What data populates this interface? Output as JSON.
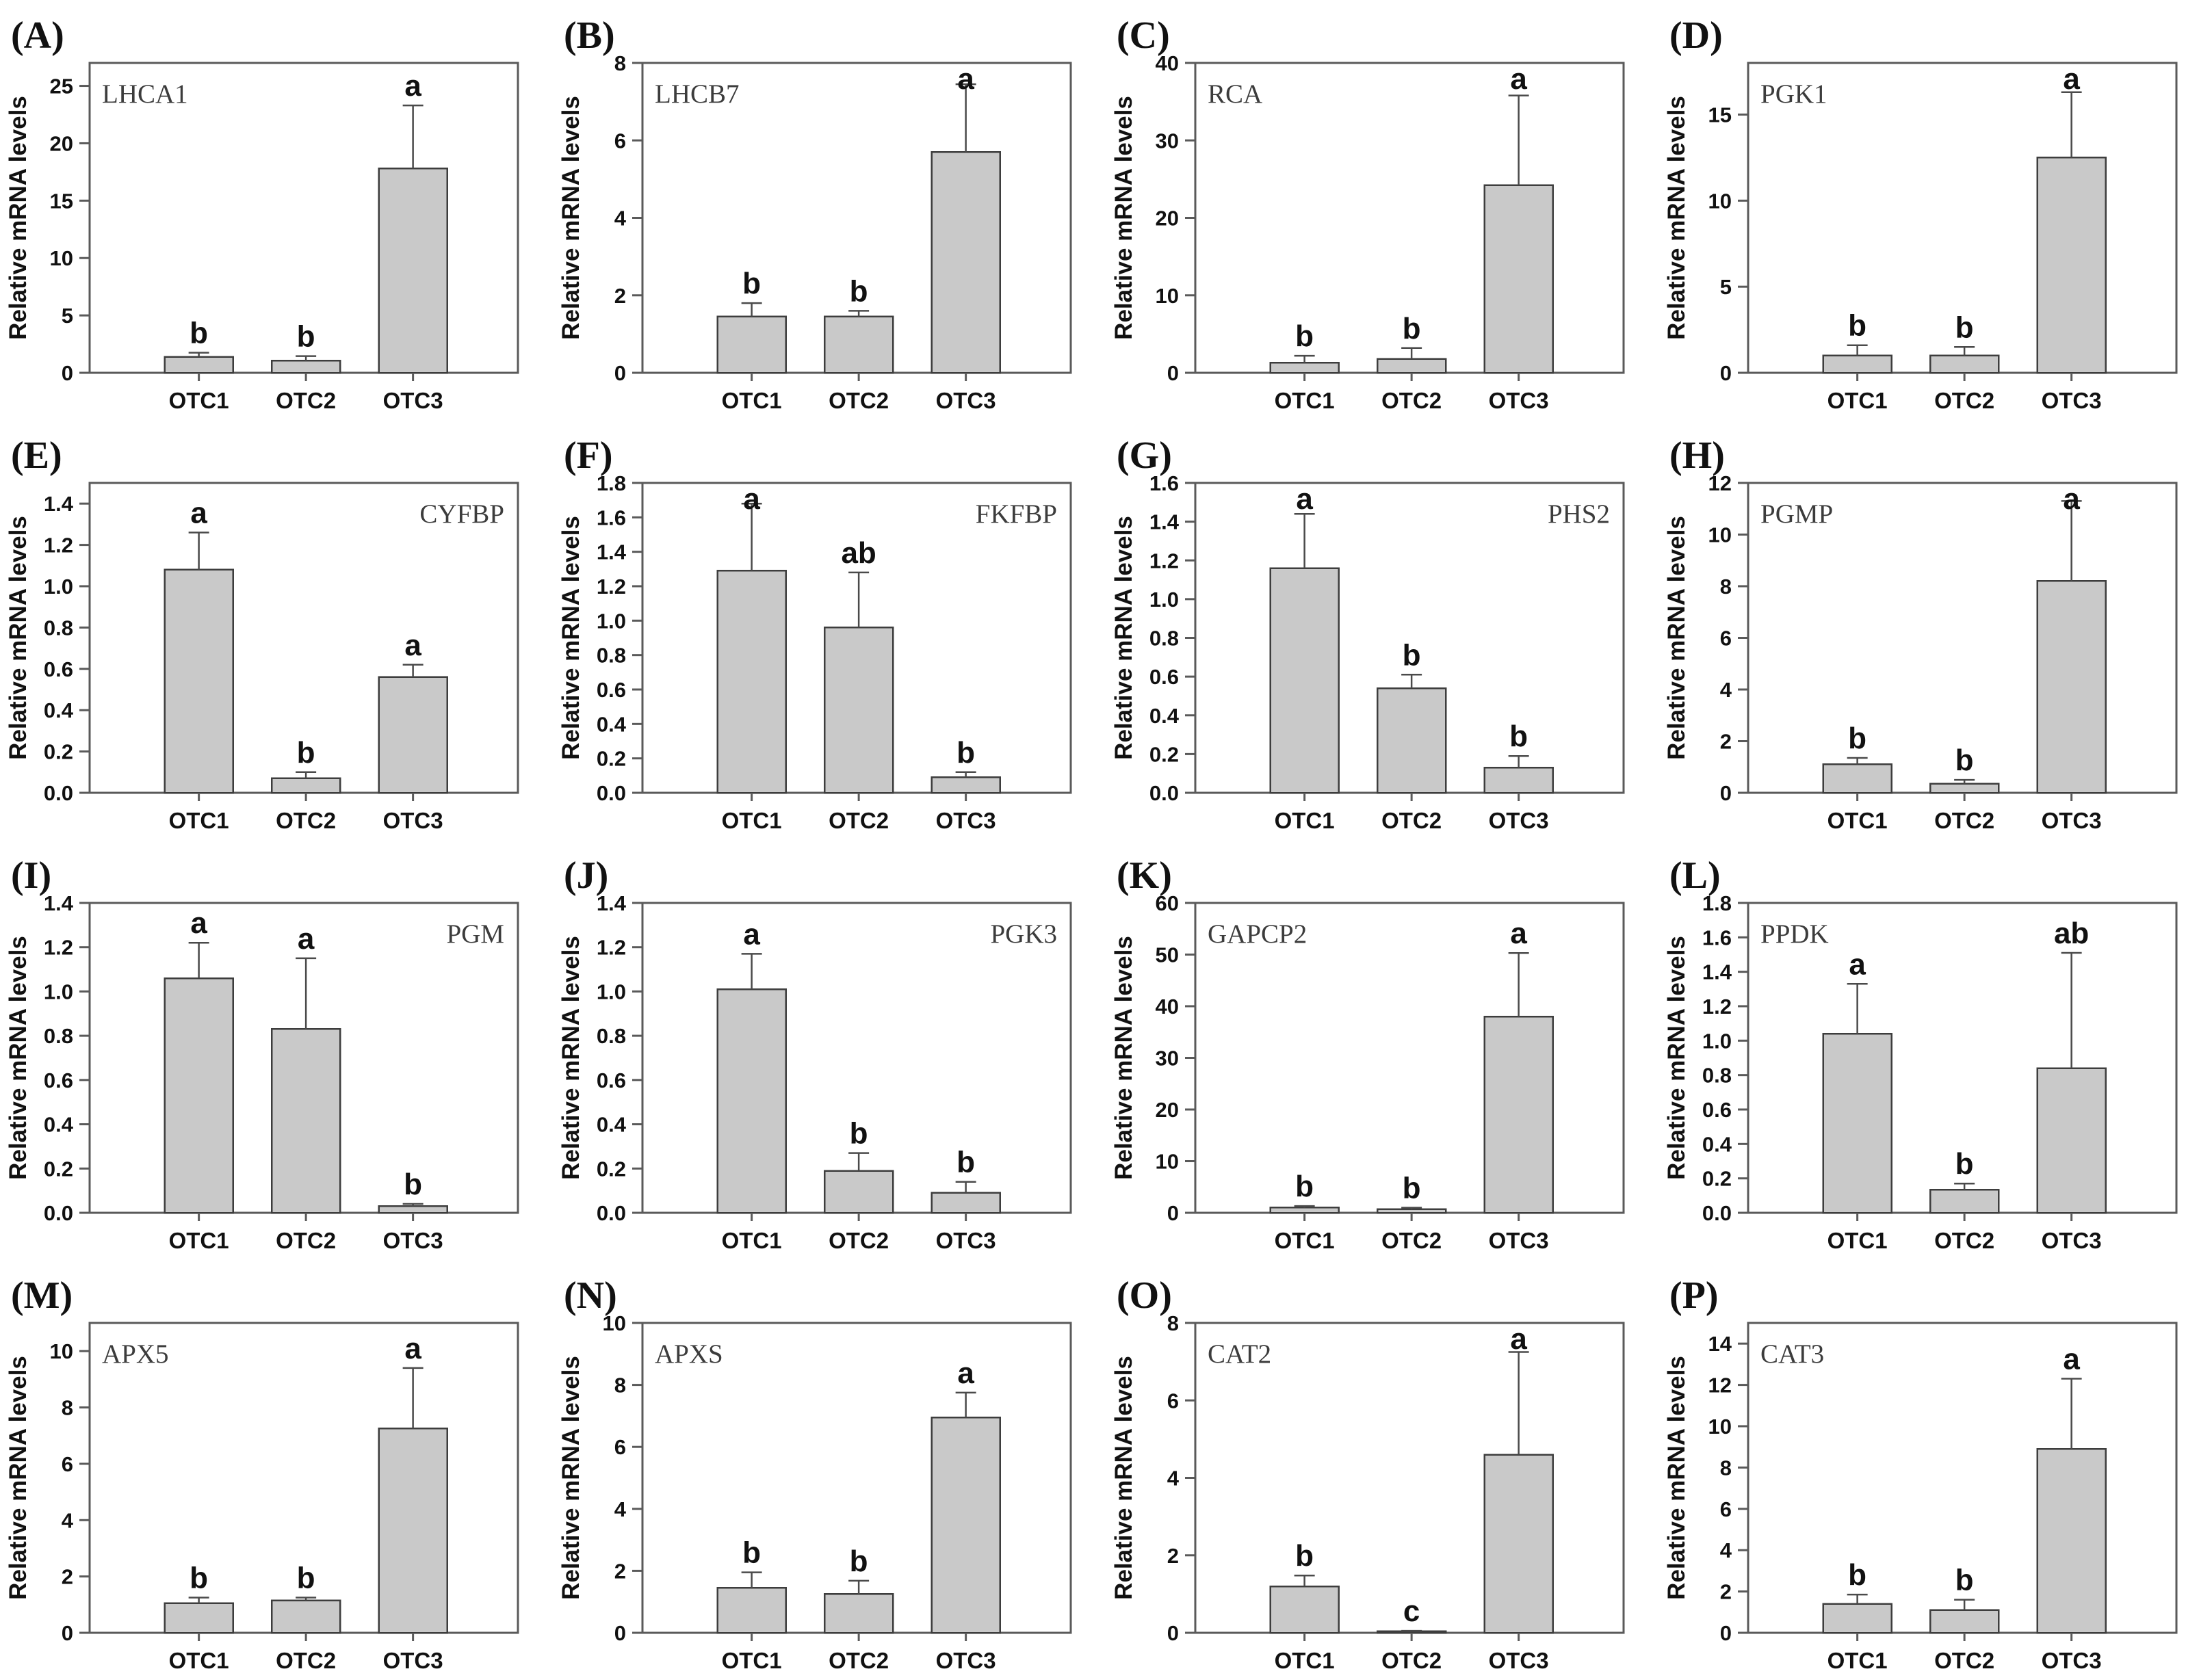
{
  "figure": {
    "ylabel": "Relative mRNA levels",
    "categories": [
      "OTC1",
      "OTC2",
      "OTC3"
    ],
    "bar_fill": "#c9c9c9",
    "bar_edge": "#3d3d3d",
    "frame_color": "#5a5a5a",
    "text_color": "#111111",
    "gene_label_color": "#3c3c3c",
    "error_color": "#4a4a4a"
  },
  "chart_data": [
    {
      "type": "bar",
      "panel": "(A)",
      "gene": "LHCA1",
      "label_side": "left",
      "ylabel": "Relative mRNA levels",
      "categories": [
        "OTC1",
        "OTC2",
        "OTC3"
      ],
      "values": [
        1.4,
        1.05,
        17.8
      ],
      "errors": [
        0.35,
        0.4,
        5.5
      ],
      "sig_letters": [
        "b",
        "b",
        "a"
      ],
      "ylim": [
        0,
        27
      ],
      "yticks": [
        0,
        5,
        10,
        15,
        20,
        25
      ],
      "decimals": 0
    },
    {
      "type": "bar",
      "panel": "(B)",
      "gene": "LHCB7",
      "label_side": "left",
      "ylabel": "Relative mRNA levels",
      "categories": [
        "OTC1",
        "OTC2",
        "OTC3"
      ],
      "values": [
        1.45,
        1.45,
        5.7
      ],
      "errors": [
        0.35,
        0.15,
        1.75
      ],
      "sig_letters": [
        "b",
        "b",
        "a"
      ],
      "ylim": [
        0,
        8
      ],
      "yticks": [
        0,
        2,
        4,
        6,
        8
      ],
      "decimals": 0
    },
    {
      "type": "bar",
      "panel": "(C)",
      "gene": "RCA",
      "label_side": "left",
      "ylabel": "Relative mRNA levels",
      "categories": [
        "OTC1",
        "OTC2",
        "OTC3"
      ],
      "values": [
        1.3,
        1.8,
        24.2
      ],
      "errors": [
        0.9,
        1.4,
        11.6
      ],
      "sig_letters": [
        "b",
        "b",
        "a"
      ],
      "ylim": [
        0,
        40
      ],
      "yticks": [
        0,
        10,
        20,
        30,
        40
      ],
      "decimals": 0
    },
    {
      "type": "bar",
      "panel": "(D)",
      "gene": "PGK1",
      "label_side": "left",
      "ylabel": "Relative mRNA levels",
      "categories": [
        "OTC1",
        "OTC2",
        "OTC3"
      ],
      "values": [
        1.0,
        1.0,
        12.5
      ],
      "errors": [
        0.6,
        0.5,
        3.8
      ],
      "sig_letters": [
        "b",
        "b",
        "a"
      ],
      "ylim": [
        0,
        18
      ],
      "yticks": [
        0,
        5,
        10,
        15
      ],
      "decimals": 0
    },
    {
      "type": "bar",
      "panel": "(E)",
      "gene": "CYFBP",
      "label_side": "right",
      "ylabel": "Relative mRNA levels",
      "categories": [
        "OTC1",
        "OTC2",
        "OTC3"
      ],
      "values": [
        1.08,
        0.07,
        0.56
      ],
      "errors": [
        0.18,
        0.03,
        0.06
      ],
      "sig_letters": [
        "a",
        "b",
        "a"
      ],
      "ylim": [
        0,
        1.5
      ],
      "yticks": [
        0,
        0.2,
        0.4,
        0.6,
        0.8,
        1.0,
        1.2,
        1.4
      ],
      "decimals": 1
    },
    {
      "type": "bar",
      "panel": "(F)",
      "gene": "FKFBP",
      "label_side": "right",
      "ylabel": "Relative mRNA levels",
      "categories": [
        "OTC1",
        "OTC2",
        "OTC3"
      ],
      "values": [
        1.29,
        0.96,
        0.09
      ],
      "errors": [
        0.39,
        0.32,
        0.03
      ],
      "sig_letters": [
        "a",
        "ab",
        "b"
      ],
      "ylim": [
        0,
        1.8
      ],
      "yticks": [
        0,
        0.2,
        0.4,
        0.6,
        0.8,
        1.0,
        1.2,
        1.4,
        1.6,
        1.8
      ],
      "decimals": 1
    },
    {
      "type": "bar",
      "panel": "(G)",
      "gene": "PHS2",
      "label_side": "right",
      "ylabel": "Relative mRNA levels",
      "categories": [
        "OTC1",
        "OTC2",
        "OTC3"
      ],
      "values": [
        1.16,
        0.54,
        0.13
      ],
      "errors": [
        0.28,
        0.07,
        0.06
      ],
      "sig_letters": [
        "a",
        "b",
        "b"
      ],
      "ylim": [
        0,
        1.6
      ],
      "yticks": [
        0,
        0.2,
        0.4,
        0.6,
        0.8,
        1.0,
        1.2,
        1.4,
        1.6
      ],
      "decimals": 1
    },
    {
      "type": "bar",
      "panel": "(H)",
      "gene": "PGMP",
      "label_side": "left",
      "ylabel": "Relative mRNA levels",
      "categories": [
        "OTC1",
        "OTC2",
        "OTC3"
      ],
      "values": [
        1.1,
        0.35,
        8.2
      ],
      "errors": [
        0.25,
        0.15,
        3.1
      ],
      "sig_letters": [
        "b",
        "b",
        "a"
      ],
      "ylim": [
        0,
        12
      ],
      "yticks": [
        0,
        2,
        4,
        6,
        8,
        10,
        12
      ],
      "decimals": 0
    },
    {
      "type": "bar",
      "panel": "(I)",
      "gene": "PGM",
      "label_side": "right",
      "ylabel": "Relative mRNA levels",
      "categories": [
        "OTC1",
        "OTC2",
        "OTC3"
      ],
      "values": [
        1.06,
        0.83,
        0.03
      ],
      "errors": [
        0.16,
        0.32,
        0.01
      ],
      "sig_letters": [
        "a",
        "a",
        "b"
      ],
      "ylim": [
        0,
        1.4
      ],
      "yticks": [
        0,
        0.2,
        0.4,
        0.6,
        0.8,
        1.0,
        1.2,
        1.4
      ],
      "decimals": 1
    },
    {
      "type": "bar",
      "panel": "(J)",
      "gene": "PGK3",
      "label_side": "right",
      "ylabel": "Relative mRNA levels",
      "categories": [
        "OTC1",
        "OTC2",
        "OTC3"
      ],
      "values": [
        1.01,
        0.19,
        0.09
      ],
      "errors": [
        0.16,
        0.08,
        0.05
      ],
      "sig_letters": [
        "a",
        "b",
        "b"
      ],
      "ylim": [
        0,
        1.4
      ],
      "yticks": [
        0,
        0.2,
        0.4,
        0.6,
        0.8,
        1.0,
        1.2,
        1.4
      ],
      "decimals": 1
    },
    {
      "type": "bar",
      "panel": "(K)",
      "gene": "GAPCP2",
      "label_side": "left",
      "ylabel": "Relative mRNA levels",
      "categories": [
        "OTC1",
        "OTC2",
        "OTC3"
      ],
      "values": [
        1.0,
        0.7,
        38.0
      ],
      "errors": [
        0.3,
        0.3,
        12.3
      ],
      "sig_letters": [
        "b",
        "b",
        "a"
      ],
      "ylim": [
        0,
        60
      ],
      "yticks": [
        0,
        10,
        20,
        30,
        40,
        50,
        60
      ],
      "decimals": 0
    },
    {
      "type": "bar",
      "panel": "(L)",
      "gene": "PPDK",
      "label_side": "left",
      "ylabel": "Relative mRNA levels",
      "categories": [
        "OTC1",
        "OTC2",
        "OTC3"
      ],
      "values": [
        1.04,
        0.135,
        0.84
      ],
      "errors": [
        0.29,
        0.035,
        0.67
      ],
      "sig_letters": [
        "a",
        "b",
        "ab"
      ],
      "ylim": [
        0,
        1.8
      ],
      "yticks": [
        0,
        0.2,
        0.4,
        0.6,
        0.8,
        1.0,
        1.2,
        1.4,
        1.6,
        1.8
      ],
      "decimals": 1
    },
    {
      "type": "bar",
      "panel": "(M)",
      "gene": "APX5",
      "label_side": "left",
      "ylabel": "Relative mRNA levels",
      "categories": [
        "OTC1",
        "OTC2",
        "OTC3"
      ],
      "values": [
        1.05,
        1.15,
        7.25
      ],
      "errors": [
        0.2,
        0.1,
        2.15
      ],
      "sig_letters": [
        "b",
        "b",
        "a"
      ],
      "ylim": [
        0,
        11
      ],
      "yticks": [
        0,
        2,
        4,
        6,
        8,
        10
      ],
      "decimals": 0
    },
    {
      "type": "bar",
      "panel": "(N)",
      "gene": "APXS",
      "label_side": "left",
      "ylabel": "Relative mRNA levels",
      "categories": [
        "OTC1",
        "OTC2",
        "OTC3"
      ],
      "values": [
        1.45,
        1.25,
        6.95
      ],
      "errors": [
        0.5,
        0.43,
        0.8
      ],
      "sig_letters": [
        "b",
        "b",
        "a"
      ],
      "ylim": [
        0,
        10
      ],
      "yticks": [
        0,
        2,
        4,
        6,
        8,
        10
      ],
      "decimals": 0
    },
    {
      "type": "bar",
      "panel": "(O)",
      "gene": "CAT2",
      "label_side": "left",
      "ylabel": "Relative mRNA levels",
      "categories": [
        "OTC1",
        "OTC2",
        "OTC3"
      ],
      "values": [
        1.2,
        0.04,
        4.6
      ],
      "errors": [
        0.28,
        0.01,
        2.65
      ],
      "sig_letters": [
        "b",
        "c",
        "a"
      ],
      "ylim": [
        0,
        8
      ],
      "yticks": [
        0,
        2,
        4,
        6,
        8
      ],
      "decimals": 0
    },
    {
      "type": "bar",
      "panel": "(P)",
      "gene": "CAT3",
      "label_side": "left",
      "ylabel": "Relative mRNA levels",
      "categories": [
        "OTC1",
        "OTC2",
        "OTC3"
      ],
      "values": [
        1.4,
        1.1,
        8.9
      ],
      "errors": [
        0.45,
        0.5,
        3.4
      ],
      "sig_letters": [
        "b",
        "b",
        "a"
      ],
      "ylim": [
        0,
        15
      ],
      "yticks": [
        0,
        2,
        4,
        6,
        8,
        10,
        12,
        14
      ],
      "decimals": 0
    }
  ]
}
